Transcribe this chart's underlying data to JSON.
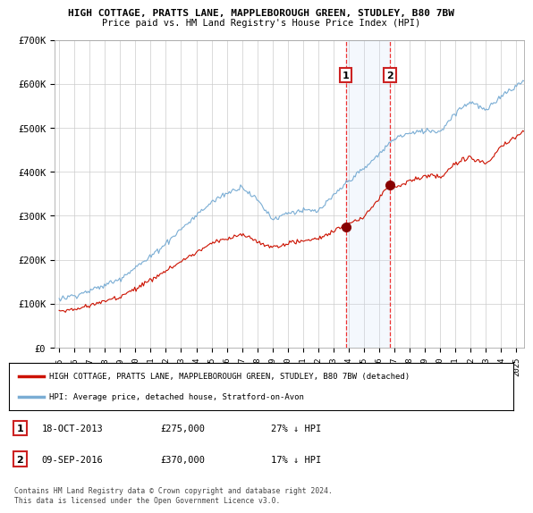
{
  "title": "HIGH COTTAGE, PRATTS LANE, MAPPLEBOROUGH GREEN, STUDLEY, B80 7BW",
  "subtitle": "Price paid vs. HM Land Registry's House Price Index (HPI)",
  "hpi_color": "#7aadd4",
  "price_color": "#cc1100",
  "highlight_color": "#ddeeff",
  "vline_color": "#ee3333",
  "ylim": [
    0,
    700000
  ],
  "yticks": [
    0,
    100000,
    200000,
    300000,
    400000,
    500000,
    600000,
    700000
  ],
  "ytick_labels": [
    "£0",
    "£100K",
    "£200K",
    "£300K",
    "£400K",
    "£500K",
    "£600K",
    "£700K"
  ],
  "purchase1_year": 2013.8,
  "purchase1_price": 275000,
  "purchase2_year": 2016.7,
  "purchase2_price": 370000,
  "legend1": "HIGH COTTAGE, PRATTS LANE, MAPPLEBOROUGH GREEN, STUDLEY, B80 7BW (detached)",
  "legend2": "HPI: Average price, detached house, Stratford-on-Avon",
  "annotation1_label": "1",
  "annotation2_label": "2",
  "annotation1_date": "18-OCT-2013",
  "annotation1_price": "£275,000",
  "annotation1_hpi": "27% ↓ HPI",
  "annotation2_date": "09-SEP-2016",
  "annotation2_price": "£370,000",
  "annotation2_hpi": "17% ↓ HPI",
  "footer": "Contains HM Land Registry data © Crown copyright and database right 2024.\nThis data is licensed under the Open Government Licence v3.0.",
  "start_year": 1995.0,
  "end_year": 2025.5
}
